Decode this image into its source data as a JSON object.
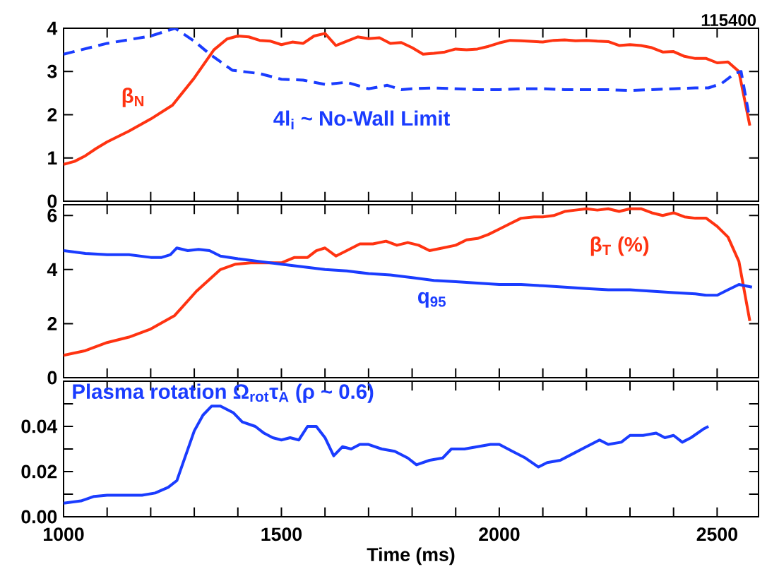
{
  "chart_data": [
    {
      "type": "line",
      "xlim": [
        1000,
        2595
      ],
      "ylim": [
        0,
        4
      ],
      "yticks": [
        0,
        1,
        2,
        3,
        4
      ],
      "xticks": [
        1000,
        {
          "value": 1100,
          "label": null
        },
        {
          "value": 1200,
          "label": null
        },
        {
          "value": 1300,
          "label": null
        },
        {
          "value": 1400,
          "label": null
        },
        1500,
        {
          "value": 1600,
          "label": null
        },
        {
          "value": 1700,
          "label": null
        },
        {
          "value": 1800,
          "label": null
        },
        {
          "value": 1900,
          "label": null
        },
        2000,
        {
          "value": 2100,
          "label": null
        },
        {
          "value": 2200,
          "label": null
        },
        {
          "value": 2300,
          "label": null
        },
        {
          "value": 2400,
          "label": null
        },
        2500
      ],
      "tick_labels": "y",
      "annotations": [
        "115400"
      ],
      "series": [
        {
          "name": "β$_{N}$",
          "color": "#ff3311",
          "line_style": "solid",
          "x": [
            1000,
            1025,
            1050,
            1075,
            1100,
            1150,
            1200,
            1250,
            1300,
            1345,
            1375,
            1400,
            1425,
            1450,
            1475,
            1500,
            1525,
            1550,
            1575,
            1600,
            1625,
            1650,
            1675,
            1700,
            1725,
            1750,
            1775,
            1800,
            1825,
            1850,
            1875,
            1900,
            1925,
            1950,
            1975,
            2000,
            2025,
            2050,
            2100,
            2125,
            2150,
            2175,
            2200,
            2225,
            2250,
            2275,
            2300,
            2325,
            2350,
            2375,
            2400,
            2425,
            2450,
            2475,
            2500,
            2525,
            2550,
            2575
          ],
          "values": [
            0.85,
            0.92,
            1.05,
            1.22,
            1.37,
            1.62,
            1.9,
            2.22,
            2.85,
            3.5,
            3.75,
            3.82,
            3.8,
            3.72,
            3.7,
            3.62,
            3.68,
            3.65,
            3.82,
            3.88,
            3.6,
            3.7,
            3.8,
            3.76,
            3.78,
            3.65,
            3.67,
            3.55,
            3.4,
            3.42,
            3.45,
            3.52,
            3.5,
            3.52,
            3.58,
            3.66,
            3.72,
            3.71,
            3.68,
            3.72,
            3.73,
            3.71,
            3.72,
            3.7,
            3.69,
            3.6,
            3.62,
            3.6,
            3.55,
            3.45,
            3.46,
            3.35,
            3.3,
            3.3,
            3.2,
            3.22,
            3.0,
            1.75
          ]
        },
        {
          "name": "4l$_{i}$ ~ No-Wall Limit",
          "color": "#1a3cff",
          "line_style": "dashed",
          "x": [
            1000,
            1100,
            1200,
            1256,
            1300,
            1337,
            1387,
            1450,
            1500,
            1550,
            1600,
            1650,
            1700,
            1743,
            1775,
            1800,
            1850,
            1900,
            1950,
            2000,
            2050,
            2100,
            2150,
            2200,
            2250,
            2300,
            2350,
            2400,
            2450,
            2480,
            2510,
            2540,
            2555,
            2572
          ],
          "values": [
            3.4,
            3.65,
            3.82,
            4.0,
            3.7,
            3.39,
            3.03,
            2.95,
            2.82,
            2.8,
            2.7,
            2.75,
            2.6,
            2.68,
            2.58,
            2.6,
            2.62,
            2.6,
            2.58,
            2.58,
            2.6,
            2.6,
            2.58,
            2.58,
            2.58,
            2.56,
            2.58,
            2.6,
            2.62,
            2.62,
            2.72,
            2.95,
            3.0,
            2.05
          ]
        }
      ]
    },
    {
      "type": "line",
      "xlim": [
        1000,
        2595
      ],
      "ylim": [
        0,
        6.4
      ],
      "yticks": [
        0,
        2,
        4,
        6
      ],
      "xticks": [
        1000,
        {
          "value": 1100,
          "label": null
        },
        {
          "value": 1200,
          "label": null
        },
        {
          "value": 1300,
          "label": null
        },
        {
          "value": 1400,
          "label": null
        },
        1500,
        {
          "value": 1600,
          "label": null
        },
        {
          "value": 1700,
          "label": null
        },
        {
          "value": 1800,
          "label": null
        },
        {
          "value": 1900,
          "label": null
        },
        2000,
        {
          "value": 2100,
          "label": null
        },
        {
          "value": 2200,
          "label": null
        },
        {
          "value": 2300,
          "label": null
        },
        {
          "value": 2400,
          "label": null
        },
        2500
      ],
      "tick_labels": "y",
      "series": [
        {
          "name": "β$_{T}$ (%)",
          "color": "#ff3311",
          "line_style": "solid",
          "x": [
            1000,
            1050,
            1100,
            1150,
            1200,
            1255,
            1305,
            1360,
            1395,
            1430,
            1500,
            1530,
            1560,
            1580,
            1600,
            1625,
            1650,
            1680,
            1710,
            1740,
            1765,
            1790,
            1815,
            1840,
            1870,
            1900,
            1925,
            1950,
            1975,
            2000,
            2025,
            2050,
            2080,
            2100,
            2125,
            2150,
            2175,
            2200,
            2225,
            2250,
            2275,
            2300,
            2325,
            2350,
            2375,
            2400,
            2425,
            2450,
            2475,
            2500,
            2525,
            2550,
            2575
          ],
          "values": [
            0.83,
            1.0,
            1.3,
            1.5,
            1.8,
            2.3,
            3.2,
            4.0,
            4.2,
            4.25,
            4.25,
            4.45,
            4.45,
            4.7,
            4.8,
            4.5,
            4.7,
            4.95,
            4.95,
            5.05,
            4.9,
            5.0,
            4.9,
            4.7,
            4.8,
            4.9,
            5.1,
            5.15,
            5.3,
            5.5,
            5.7,
            5.9,
            5.95,
            5.95,
            6.0,
            6.15,
            6.2,
            6.25,
            6.2,
            6.25,
            6.15,
            6.25,
            6.25,
            6.1,
            6.0,
            6.1,
            5.95,
            5.9,
            5.9,
            5.6,
            5.2,
            4.3,
            2.1
          ]
        },
        {
          "name": "q$_{95}$",
          "color": "#1a3cff",
          "line_style": "solid",
          "x": [
            1000,
            1050,
            1100,
            1150,
            1200,
            1225,
            1245,
            1260,
            1285,
            1310,
            1335,
            1360,
            1400,
            1450,
            1500,
            1550,
            1600,
            1650,
            1700,
            1750,
            1800,
            1850,
            1900,
            1950,
            2000,
            2050,
            2100,
            2150,
            2200,
            2250,
            2300,
            2350,
            2400,
            2450,
            2475,
            2500,
            2525,
            2550,
            2580
          ],
          "values": [
            4.7,
            4.6,
            4.55,
            4.55,
            4.45,
            4.45,
            4.55,
            4.8,
            4.7,
            4.75,
            4.7,
            4.5,
            4.4,
            4.3,
            4.2,
            4.1,
            4.0,
            3.95,
            3.85,
            3.8,
            3.7,
            3.6,
            3.55,
            3.5,
            3.45,
            3.45,
            3.4,
            3.35,
            3.3,
            3.25,
            3.25,
            3.2,
            3.15,
            3.1,
            3.05,
            3.05,
            3.25,
            3.45,
            3.35
          ]
        }
      ]
    },
    {
      "type": "line",
      "xlim": [
        1000,
        2595
      ],
      "ylim": [
        0,
        0.06
      ],
      "xlabel": "Time (ms)",
      "yticks": [
        {
          "value": 0,
          "label": "0.00"
        },
        {
          "value": 0.01,
          "label": null
        },
        0.02,
        {
          "value": 0.03,
          "label": null
        },
        0.04,
        {
          "value": 0.05,
          "label": null
        }
      ],
      "xticks": [
        1000,
        {
          "value": 1100,
          "label": null
        },
        {
          "value": 1200,
          "label": null
        },
        {
          "value": 1300,
          "label": null
        },
        {
          "value": 1400,
          "label": null
        },
        1500,
        {
          "value": 1600,
          "label": null
        },
        {
          "value": 1700,
          "label": null
        },
        {
          "value": 1800,
          "label": null
        },
        {
          "value": 1900,
          "label": null
        },
        2000,
        {
          "value": 2100,
          "label": null
        },
        {
          "value": 2200,
          "label": null
        },
        {
          "value": 2300,
          "label": null
        },
        {
          "value": 2400,
          "label": null
        },
        2500
      ],
      "series": [
        {
          "name": "Plasma rotation Ω$_{rot}$τ$_{A}$ (ρ ~ 0.6)",
          "color": "#1a3cff",
          "line_style": "solid",
          "x": [
            1000,
            1040,
            1070,
            1100,
            1150,
            1180,
            1210,
            1240,
            1260,
            1280,
            1300,
            1320,
            1340,
            1360,
            1390,
            1410,
            1440,
            1460,
            1480,
            1500,
            1520,
            1540,
            1560,
            1580,
            1600,
            1620,
            1640,
            1660,
            1680,
            1700,
            1730,
            1760,
            1790,
            1810,
            1840,
            1870,
            1890,
            1920,
            1950,
            1980,
            2000,
            2030,
            2060,
            2090,
            2110,
            2140,
            2170,
            2200,
            2230,
            2250,
            2280,
            2300,
            2330,
            2360,
            2380,
            2400,
            2420,
            2440,
            2470,
            2480
          ],
          "values": [
            0.006,
            0.007,
            0.009,
            0.0095,
            0.0095,
            0.0095,
            0.0105,
            0.013,
            0.016,
            0.027,
            0.038,
            0.045,
            0.049,
            0.049,
            0.046,
            0.042,
            0.04,
            0.037,
            0.035,
            0.034,
            0.035,
            0.034,
            0.04,
            0.04,
            0.035,
            0.027,
            0.031,
            0.03,
            0.032,
            0.032,
            0.03,
            0.029,
            0.026,
            0.023,
            0.025,
            0.026,
            0.03,
            0.03,
            0.031,
            0.032,
            0.032,
            0.029,
            0.026,
            0.022,
            0.024,
            0.025,
            0.028,
            0.031,
            0.034,
            0.032,
            0.033,
            0.036,
            0.036,
            0.037,
            0.035,
            0.036,
            0.033,
            0.035,
            0.039,
            0.04
          ]
        }
      ]
    }
  ]
}
